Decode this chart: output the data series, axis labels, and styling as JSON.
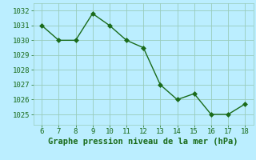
{
  "x": [
    6,
    7,
    8,
    9,
    10,
    11,
    12,
    13,
    14,
    15,
    16,
    17,
    18
  ],
  "y": [
    1031,
    1030,
    1030,
    1031.8,
    1031,
    1030,
    1029.5,
    1027,
    1026,
    1026.4,
    1025,
    1025,
    1025.7
  ],
  "line_color": "#1a6b1a",
  "marker_color": "#1a6b1a",
  "background_color": "#bbeeff",
  "grid_color": "#99ccbb",
  "xlabel": "Graphe pression niveau de la mer (hPa)",
  "xlim": [
    5.5,
    18.5
  ],
  "ylim": [
    1024.3,
    1032.5
  ],
  "yticks": [
    1025,
    1026,
    1027,
    1028,
    1029,
    1030,
    1031,
    1032
  ],
  "xticks": [
    6,
    7,
    8,
    9,
    10,
    11,
    12,
    13,
    14,
    15,
    16,
    17,
    18
  ],
  "xlabel_fontsize": 7.5,
  "tick_fontsize": 6.5,
  "line_width": 1.0,
  "marker_size": 3.0,
  "text_color": "#1a6b1a"
}
